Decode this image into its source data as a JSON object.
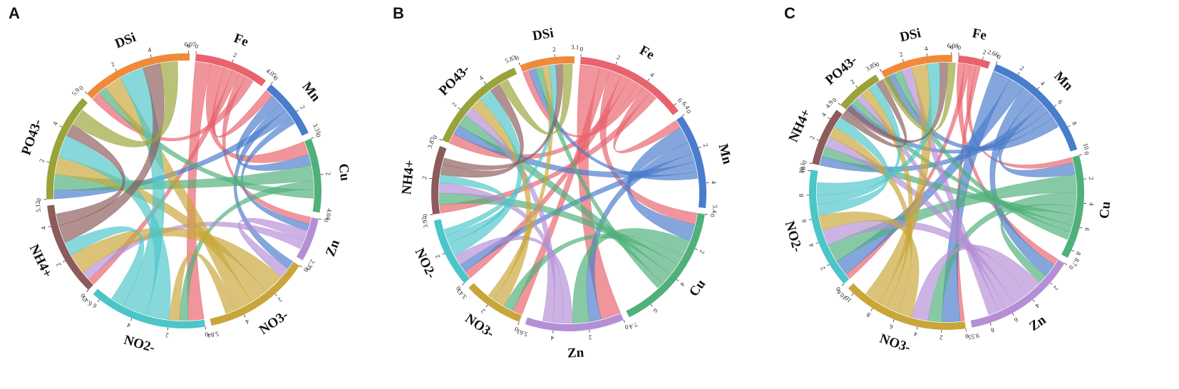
{
  "colors": {
    "Fe": "#e8636c",
    "Mn": "#4a7ccc",
    "Cu": "#4fb07a",
    "Zn": "#b48fd6",
    "NO3-": "#c9a63a",
    "NO2-": "#4cc5c8",
    "NH4+": "#8c5b5b",
    "PO43-": "#9aa33a",
    "DSi": "#f08a3a"
  },
  "panels": [
    {
      "label": "A",
      "segments": [
        {
          "name": "Fe",
          "total": 4.05,
          "total_label": "4.05",
          "ticks": [
            "0",
            "2"
          ]
        },
        {
          "name": "Mn",
          "total": 3.31,
          "total_label": "3.31",
          "ticks": [
            "0",
            "2"
          ]
        },
        {
          "name": "Cu",
          "total": 4.04,
          "total_label": "4.04",
          "ticks": [
            "0",
            "2"
          ]
        },
        {
          "name": "Zn",
          "total": 2.39,
          "total_label": "2.39",
          "ticks": [
            "0"
          ]
        },
        {
          "name": "NO3-",
          "total": 5.84,
          "total_label": "5.84",
          "ticks": [
            "0",
            "2",
            "4"
          ]
        },
        {
          "name": "NO2-",
          "total": 6.45,
          "total_label": "6.45",
          "ticks": [
            "0",
            "2",
            "4",
            "6"
          ]
        },
        {
          "name": "NH4+",
          "total": 5.12,
          "total_label": "5.12",
          "ticks": [
            "0",
            "2",
            "4"
          ]
        },
        {
          "name": "PO43-",
          "total": 5.9,
          "total_label": "5.9",
          "ticks": [
            "0",
            "2",
            "4"
          ]
        },
        {
          "name": "DSi",
          "total": 6.07,
          "total_label": "6.07",
          "ticks": [
            "0",
            "2",
            "4",
            "6"
          ]
        }
      ]
    },
    {
      "label": "B",
      "segments": [
        {
          "name": "Fe",
          "total": 6.4,
          "total_label": "6.4",
          "ticks": [
            "0",
            "2",
            "4",
            "6"
          ]
        },
        {
          "name": "Mn",
          "total": 5.4,
          "total_label": "5.4",
          "ticks": [
            "0",
            "2",
            "4"
          ]
        },
        {
          "name": "Cu",
          "total": 7.4,
          "total_label": "7.4",
          "ticks": [
            "0",
            "2",
            "4",
            "6"
          ]
        },
        {
          "name": "Zn",
          "total": 5.61,
          "total_label": "5.61",
          "ticks": [
            "0",
            "2",
            "4"
          ]
        },
        {
          "name": "NO3-",
          "total": 3.43,
          "total_label": "3.43",
          "ticks": [
            "0",
            "2"
          ]
        },
        {
          "name": "NO2-",
          "total": 3.92,
          "total_label": "3.92",
          "ticks": [
            "0",
            "2"
          ]
        },
        {
          "name": "NH4+",
          "total": 3.87,
          "total_label": "3.87",
          "ticks": [
            "0",
            "2"
          ]
        },
        {
          "name": "PO43-",
          "total": 5.83,
          "total_label": "5.83",
          "ticks": [
            "0",
            "2",
            "4"
          ]
        },
        {
          "name": "DSi",
          "total": 3.1,
          "total_label": "3.1",
          "ticks": [
            "0",
            "2"
          ]
        }
      ]
    },
    {
      "label": "C",
      "segments": [
        {
          "name": "Fe",
          "total": 2.66,
          "total_label": "2.66",
          "ticks": [
            "0",
            "2"
          ]
        },
        {
          "name": "Mn",
          "total": 10,
          "total_label": "10",
          "ticks": [
            "0",
            "2",
            "4",
            "6",
            "8"
          ]
        },
        {
          "name": "Cu",
          "total": 8.7,
          "total_label": "8.7",
          "ticks": [
            "0",
            "2",
            "4",
            "6",
            "8"
          ]
        },
        {
          "name": "Zn",
          "total": 9.55,
          "total_label": "9.55",
          "ticks": [
            "0",
            "2",
            "4",
            "6",
            "8"
          ]
        },
        {
          "name": "NO3-",
          "total": 10.6,
          "total_label": "10.6",
          "ticks": [
            "0",
            "2",
            "4",
            "6",
            "8",
            "10"
          ]
        },
        {
          "name": "NO2-",
          "total": 10.1,
          "total_label": "10.1",
          "ticks": [
            "0",
            "2",
            "4",
            "6",
            "8",
            "10"
          ]
        },
        {
          "name": "NH4+",
          "total": 4.9,
          "total_label": "4.9",
          "ticks": [
            "0",
            "2",
            "4"
          ]
        },
        {
          "name": "PO43-",
          "total": 3.85,
          "total_label": "3.85",
          "ticks": [
            "0",
            "2"
          ]
        },
        {
          "name": "DSi",
          "total": 6.08,
          "total_label": "6.08",
          "ticks": [
            "0",
            "2",
            "4",
            "6"
          ]
        }
      ]
    }
  ],
  "links": [
    [
      [
        "Fe",
        "NO2-",
        0.9
      ],
      [
        "Fe",
        "Cu",
        0.8
      ],
      [
        "Fe",
        "Mn",
        0.5
      ],
      [
        "Fe",
        "NH4+",
        0.4
      ],
      [
        "Fe",
        "Zn",
        0.4
      ],
      [
        "Fe",
        "DSi",
        0.5
      ],
      [
        "Mn",
        "Cu",
        0.6
      ],
      [
        "Mn",
        "NO3-",
        0.5
      ],
      [
        "Mn",
        "PO43-",
        0.5
      ],
      [
        "Mn",
        "Zn",
        0.4
      ],
      [
        "Cu",
        "PO43-",
        0.9
      ],
      [
        "Cu",
        "NO2-",
        0.5
      ],
      [
        "Cu",
        "DSi",
        0.5
      ],
      [
        "Zn",
        "NO3-",
        0.6
      ],
      [
        "Zn",
        "NH4+",
        0.5
      ],
      [
        "NO3-",
        "NH4+",
        1.2
      ],
      [
        "NO3-",
        "PO43-",
        1.0
      ],
      [
        "NO3-",
        "DSi",
        1.0
      ],
      [
        "NO3-",
        "NO2-",
        0.6
      ],
      [
        "NO2-",
        "PO43-",
        1.3
      ],
      [
        "NO2-",
        "DSi",
        1.4
      ],
      [
        "NO2-",
        "NH4+",
        0.8
      ],
      [
        "NH4+",
        "DSi",
        1.0
      ],
      [
        "NH4+",
        "PO43-",
        0.7
      ],
      [
        "PO43-",
        "DSi",
        1.0
      ]
    ],
    [
      [
        "Fe",
        "Zn",
        1.2
      ],
      [
        "Fe",
        "NO3-",
        0.6
      ],
      [
        "Fe",
        "Cu",
        0.7
      ],
      [
        "Fe",
        "NO2-",
        0.5
      ],
      [
        "Fe",
        "PO43-",
        0.6
      ],
      [
        "Fe",
        "DSi",
        0.4
      ],
      [
        "Fe",
        "Mn",
        0.5
      ],
      [
        "Fe",
        "NH4+",
        0.5
      ],
      [
        "Mn",
        "Cu",
        1.0
      ],
      [
        "Mn",
        "Zn",
        0.7
      ],
      [
        "Mn",
        "NO2-",
        0.5
      ],
      [
        "Mn",
        "PO43-",
        0.6
      ],
      [
        "Mn",
        "DSi",
        0.4
      ],
      [
        "Cu",
        "Zn",
        1.0
      ],
      [
        "Cu",
        "NO3-",
        0.6
      ],
      [
        "Cu",
        "NH4+",
        0.7
      ],
      [
        "Cu",
        "PO43-",
        0.7
      ],
      [
        "Cu",
        "DSi",
        0.4
      ],
      [
        "Zn",
        "NO2-",
        0.6
      ],
      [
        "Zn",
        "NH4+",
        0.6
      ],
      [
        "Zn",
        "PO43-",
        0.6
      ],
      [
        "NO3-",
        "PO43-",
        0.7
      ],
      [
        "NO3-",
        "DSi",
        0.4
      ],
      [
        "NO2-",
        "PO43-",
        0.8
      ],
      [
        "NO2-",
        "NH4+",
        0.5
      ],
      [
        "NO2-",
        "DSi",
        0.4
      ],
      [
        "NH4+",
        "PO43-",
        0.6
      ],
      [
        "NH4+",
        "DSi",
        0.4
      ],
      [
        "PO43-",
        "DSi",
        0.6
      ]
    ],
    [
      [
        "Fe",
        "Zn",
        0.6
      ],
      [
        "Fe",
        "NO2-",
        0.5
      ],
      [
        "Fe",
        "Cu",
        0.5
      ],
      [
        "Fe",
        "NO3-",
        0.4
      ],
      [
        "Mn",
        "NO3-",
        1.6
      ],
      [
        "Mn",
        "NO2-",
        1.4
      ],
      [
        "Mn",
        "Zn",
        1.2
      ],
      [
        "Mn",
        "Cu",
        1.0
      ],
      [
        "Mn",
        "NH4+",
        0.8
      ],
      [
        "Mn",
        "PO43-",
        0.7
      ],
      [
        "Mn",
        "DSi",
        0.9
      ],
      [
        "Cu",
        "NO2-",
        1.6
      ],
      [
        "Cu",
        "NO3-",
        1.2
      ],
      [
        "Cu",
        "Zn",
        0.8
      ],
      [
        "Cu",
        "NH4+",
        0.9
      ],
      [
        "Cu",
        "PO43-",
        0.6
      ],
      [
        "Cu",
        "DSi",
        0.7
      ],
      [
        "Zn",
        "NO3-",
        1.5
      ],
      [
        "Zn",
        "NO2-",
        1.4
      ],
      [
        "Zn",
        "NH4+",
        0.9
      ],
      [
        "Zn",
        "PO43-",
        0.6
      ],
      [
        "Zn",
        "DSi",
        0.9
      ],
      [
        "NO3-",
        "NO2-",
        1.3
      ],
      [
        "NO3-",
        "NH4+",
        1.0
      ],
      [
        "NO3-",
        "PO43-",
        0.8
      ],
      [
        "NO3-",
        "DSi",
        1.4
      ],
      [
        "NO2-",
        "NH4+",
        1.0
      ],
      [
        "NO2-",
        "PO43-",
        0.8
      ],
      [
        "NO2-",
        "DSi",
        1.1
      ],
      [
        "NH4+",
        "PO43-",
        0.6
      ],
      [
        "NH4+",
        "DSi",
        0.7
      ],
      [
        "PO43-",
        "DSi",
        0.7
      ]
    ]
  ]
}
